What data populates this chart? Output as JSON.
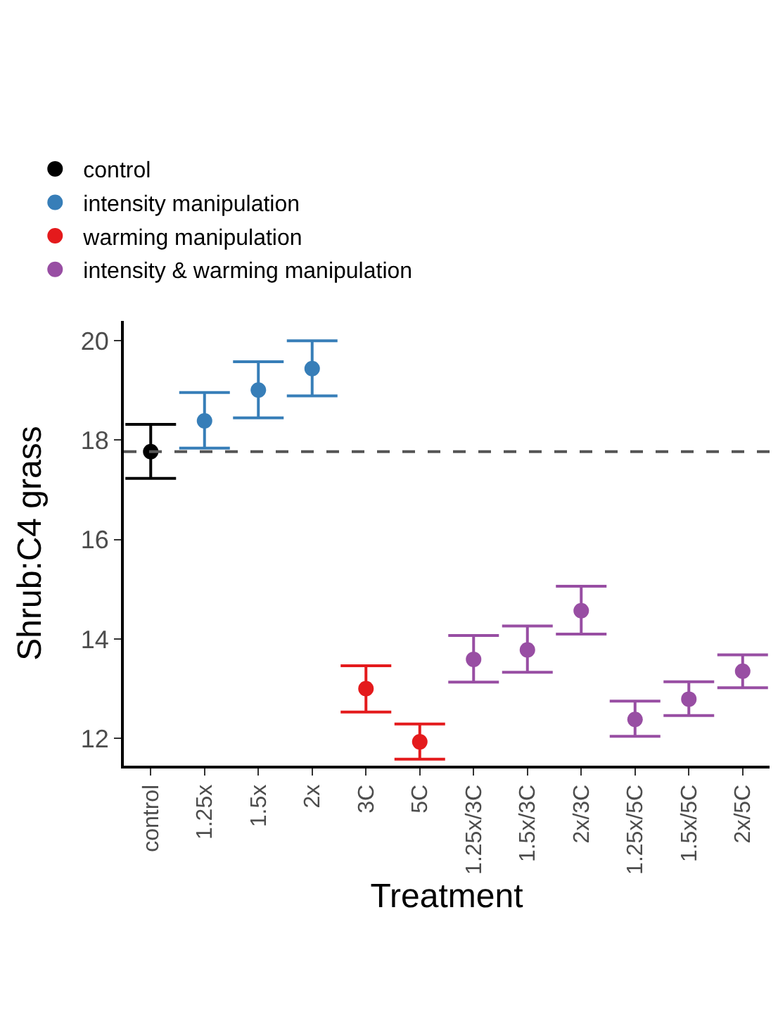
{
  "chart_data": {
    "type": "scatter",
    "xlabel": "Treatment",
    "ylabel": "Shrub:C4 grass",
    "categories": [
      "control",
      "1.25x",
      "1.5x",
      "2x",
      "3C",
      "5C",
      "1.25x/3C",
      "1.5x/3C",
      "2x/3C",
      "1.25x/5C",
      "1.5x/5C",
      "2x/5C"
    ],
    "series": [
      {
        "name": "control",
        "color": "#000000",
        "values": [
          17.77,
          null,
          null,
          null,
          null,
          null,
          null,
          null,
          null,
          null,
          null,
          null
        ],
        "errors": [
          [
            17.23,
            18.32
          ],
          null,
          null,
          null,
          null,
          null,
          null,
          null,
          null,
          null,
          null,
          null
        ]
      },
      {
        "name": "intensity manipulation",
        "color": "#377eb8",
        "values": [
          null,
          18.39,
          19.01,
          19.44,
          null,
          null,
          null,
          null,
          null,
          null,
          null,
          null
        ],
        "errors": [
          null,
          [
            17.84,
            18.96
          ],
          [
            18.45,
            19.58
          ],
          [
            18.89,
            20.0
          ],
          null,
          null,
          null,
          null,
          null,
          null,
          null,
          null
        ]
      },
      {
        "name": "warming manipulation",
        "color": "#e41a1c",
        "values": [
          null,
          null,
          null,
          null,
          13.0,
          11.93,
          null,
          null,
          null,
          null,
          null,
          null
        ],
        "errors": [
          null,
          null,
          null,
          null,
          [
            12.53,
            13.46
          ],
          [
            11.58,
            12.29
          ],
          null,
          null,
          null,
          null,
          null,
          null
        ]
      },
      {
        "name": "intensity & warming manipulation",
        "color": "#984ea3",
        "values": [
          null,
          null,
          null,
          null,
          null,
          null,
          13.59,
          13.78,
          14.57,
          12.38,
          12.79,
          13.35
        ],
        "errors": [
          null,
          null,
          null,
          null,
          null,
          null,
          [
            13.13,
            14.07
          ],
          [
            13.33,
            14.26
          ],
          [
            14.1,
            15.06
          ],
          [
            12.04,
            12.75
          ],
          [
            12.46,
            13.14
          ],
          [
            13.02,
            13.68
          ]
        ]
      }
    ],
    "ylim": [
      11.45,
      20.4
    ],
    "yticks": [
      12,
      14,
      16,
      18,
      20
    ],
    "ref_lines": [
      {
        "axis": "y",
        "value": 17.77,
        "color": "#555555",
        "line_style": "dashed"
      }
    ],
    "grid": false,
    "legend": "top",
    "marker": "circle"
  }
}
